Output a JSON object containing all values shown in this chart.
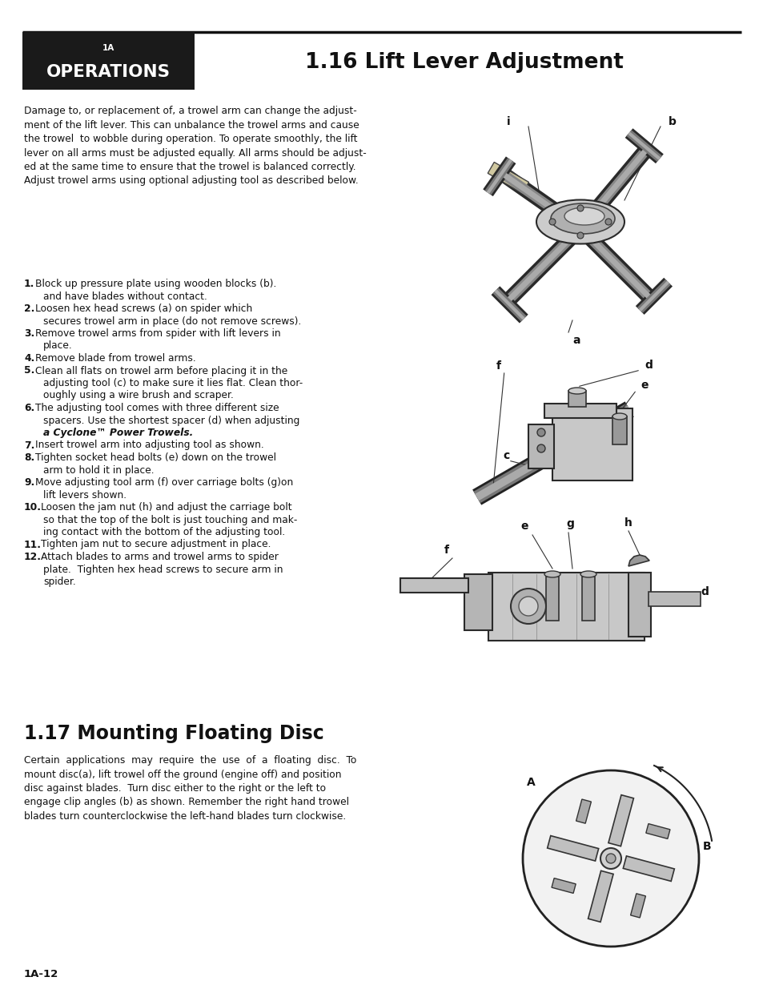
{
  "page_bg": "#ffffff",
  "header_box_color": "#1a1a1a",
  "header_small_text": "1A",
  "header_big_text": "OPERATIONS",
  "title_text": "1.16 Lift Lever Adjustment",
  "section2_title": "1.17 Mounting Floating Disc",
  "footer_text": "1A-12",
  "intro_text": "Damage to, or replacement of, a trowel arm can change the adjust-\nment of the lift lever. This can unbalance the trowel arms and cause\nthe trowel  to wobble during operation. To operate smoothly, the lift\nlever on all arms must be adjusted equally. All arms should be adjust-\ned at the same time to ensure that the trowel is balanced correctly.\nAdjust trowel arms using optional adjusting tool as described below.",
  "steps": [
    {
      "num": "1.",
      "bold_part": "Block up pressure plate using wooden blocks (b).",
      "rest": "\n    and have blades without contact."
    },
    {
      "num": "2.",
      "bold_part": "Loosen hex head screws (a) on spider which",
      "rest": "\n    secures trowel arm in place (do not remove screws)."
    },
    {
      "num": "3.",
      "bold_part": "Remove trowel arms from spider with lift levers in",
      "rest": "\n    place."
    },
    {
      "num": "4.",
      "bold_part": "Remove blade from trowel arms.",
      "rest": ""
    },
    {
      "num": "5.",
      "bold_part": "Clean all flats on trowel arm before placing it in the",
      "rest": "\n    adjusting tool (c) to make sure it lies flat. Clean thor-\n    oughly using a wire brush and scraper."
    },
    {
      "num": "6.",
      "bold_part": "The adjusting tool comes with three different size",
      "rest": "\n    spacers. Use the shortest spacer (d) when adjusting\n    a [italic]Cyclone™ Power Trowels[/italic]."
    },
    {
      "num": "7.",
      "bold_part": "Insert trowel arm into adjusting tool as shown.",
      "rest": ""
    },
    {
      "num": "8.",
      "bold_part": "Tighten socket head bolts (e) down on the trowel",
      "rest": "\n    arm to hold it in place."
    },
    {
      "num": "9.",
      "bold_part": "Move adjusting tool arm (f) over carriage bolts (g)on",
      "rest": "\n    lift levers shown."
    },
    {
      "num": "10.",
      "bold_part": "Loosen the jam nut (h) and adjust the carriage bolt",
      "rest": "\n    so that the top of the bolt is just touching and mak-\n    ing contact with the bottom of the adjusting tool."
    },
    {
      "num": "11.",
      "bold_part": "Tighten jam nut to secure adjustment in place.",
      "rest": ""
    },
    {
      "num": "12.",
      "bold_part": "Attach blades to arms and trowel arms to spider",
      "rest": "\n    plate.  Tighten hex head screws to secure arm in\n    spider."
    }
  ],
  "section2_text": "Certain  applications  may  require  the  use  of  a  floating  disc.  To\nmount disc(a), lift trowel off the ground (engine off) and position\ndisc against blades.  Turn disc either to the right or the left to\nengage clip angles (b) as shown. Remember the right hand trowel\nblades turn counterclockwise the left-hand blades turn clockwise."
}
